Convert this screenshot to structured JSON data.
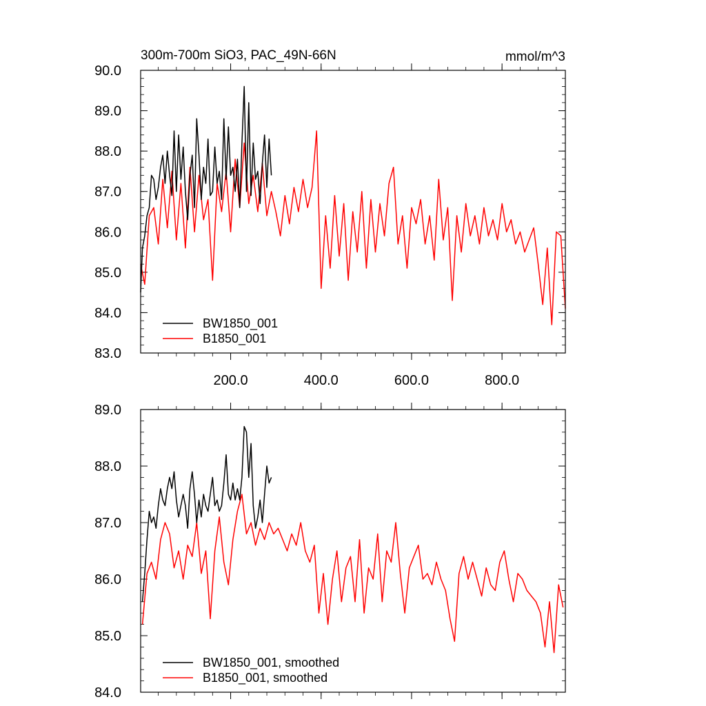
{
  "figure": {
    "title": "300m-700m SiO3, PAC_49N-66N",
    "units": "mmol/m^3"
  },
  "chart_data": [
    {
      "type": "line",
      "title": "300m-700m SiO3, PAC_49N-66N",
      "units_label": "mmol/m^3",
      "xlim": [
        1,
        940
      ],
      "ylim": [
        83.0,
        90.0
      ],
      "x_ticks": [
        200,
        400,
        600,
        800
      ],
      "x_tick_labels": [
        "200.0",
        "400.0",
        "600.0",
        "800.0"
      ],
      "y_ticks": [
        83,
        84,
        85,
        86,
        87,
        88,
        89,
        90
      ],
      "y_tick_labels": [
        "83.0",
        "84.0",
        "85.0",
        "86.0",
        "87.0",
        "88.0",
        "89.0",
        "90.0"
      ],
      "grid": false,
      "legend": "bottom-left",
      "series": [
        {
          "name": "BW1850_001",
          "color": "#000000",
          "x": [
            1,
            5,
            10,
            15,
            20,
            25,
            30,
            35,
            40,
            45,
            50,
            55,
            60,
            65,
            70,
            75,
            80,
            85,
            90,
            95,
            100,
            105,
            110,
            115,
            120,
            125,
            130,
            135,
            140,
            145,
            150,
            155,
            160,
            165,
            170,
            175,
            180,
            185,
            190,
            195,
            200,
            205,
            210,
            215,
            220,
            225,
            230,
            235,
            240,
            245,
            250,
            255,
            260,
            265,
            270,
            275,
            280,
            285,
            290
          ],
          "y": [
            84.5,
            85.6,
            85.9,
            86.4,
            86.6,
            87.4,
            87.3,
            86.8,
            87.1,
            87.6,
            87.9,
            87.2,
            88.0,
            87.4,
            86.9,
            88.5,
            87.0,
            88.4,
            87.3,
            88.1,
            87.0,
            86.3,
            87.4,
            87.9,
            86.6,
            88.8,
            87.9,
            86.8,
            87.6,
            87.2,
            88.3,
            86.9,
            87.0,
            88.1,
            87.2,
            87.5,
            86.8,
            88.8,
            87.3,
            88.6,
            87.4,
            87.6,
            87.0,
            87.8,
            86.6,
            88.2,
            89.6,
            87.0,
            89.2,
            86.9,
            88.2,
            87.3,
            87.5,
            86.7,
            87.7,
            88.4,
            87.1,
            88.3,
            87.4
          ]
        },
        {
          "name": "B1850_001",
          "color": "#ff0000",
          "x": [
            1,
            10,
            20,
            30,
            40,
            50,
            60,
            70,
            80,
            90,
            100,
            110,
            120,
            130,
            140,
            150,
            160,
            170,
            180,
            190,
            200,
            210,
            220,
            230,
            240,
            250,
            260,
            270,
            280,
            290,
            300,
            310,
            320,
            330,
            340,
            350,
            360,
            370,
            380,
            390,
            400,
            410,
            420,
            430,
            440,
            450,
            460,
            470,
            480,
            490,
            500,
            510,
            520,
            530,
            540,
            550,
            560,
            570,
            580,
            590,
            600,
            610,
            620,
            630,
            640,
            650,
            660,
            670,
            680,
            690,
            700,
            710,
            720,
            730,
            740,
            750,
            760,
            770,
            780,
            790,
            800,
            810,
            820,
            830,
            840,
            850,
            860,
            870,
            880,
            890,
            900,
            910,
            920,
            930,
            940
          ],
          "y": [
            85.2,
            84.7,
            86.4,
            86.6,
            85.7,
            87.3,
            86.1,
            87.5,
            85.8,
            87.2,
            85.6,
            87.6,
            86.0,
            87.4,
            86.3,
            86.8,
            84.8,
            87.2,
            86.5,
            87.5,
            86.0,
            87.8,
            86.6,
            88.2,
            86.7,
            87.4,
            86.5,
            87.7,
            86.4,
            87.0,
            86.5,
            85.9,
            86.9,
            86.2,
            87.1,
            86.5,
            87.3,
            86.6,
            87.1,
            88.5,
            84.6,
            86.4,
            85.1,
            86.9,
            85.4,
            86.7,
            84.8,
            86.5,
            85.5,
            87.0,
            85.1,
            86.8,
            85.5,
            86.7,
            85.9,
            87.2,
            87.6,
            85.7,
            86.4,
            85.1,
            86.6,
            86.2,
            86.8,
            85.7,
            86.4,
            85.3,
            87.3,
            85.8,
            86.6,
            84.3,
            86.4,
            85.5,
            86.7,
            85.9,
            86.4,
            85.7,
            86.6,
            85.9,
            86.3,
            85.8,
            86.7,
            86.0,
            86.3,
            85.7,
            86.0,
            85.5,
            85.8,
            86.1,
            85.2,
            84.2,
            85.6,
            83.7,
            86.0,
            85.9,
            84.1
          ]
        }
      ]
    },
    {
      "type": "line",
      "xlim": [
        1,
        940
      ],
      "ylim": [
        84.0,
        89.0
      ],
      "x_ticks": [
        200,
        400,
        600,
        800
      ],
      "x_tick_labels": [],
      "y_ticks": [
        84,
        85,
        86,
        87,
        88,
        89
      ],
      "y_tick_labels": [
        "84.0",
        "85.0",
        "86.0",
        "87.0",
        "88.0",
        "89.0"
      ],
      "grid": false,
      "legend": "bottom-left",
      "series": [
        {
          "name": "BW1850_001, smoothed",
          "color": "#000000",
          "x": [
            5,
            10,
            15,
            20,
            25,
            30,
            35,
            40,
            45,
            50,
            55,
            60,
            65,
            70,
            75,
            80,
            85,
            90,
            95,
            100,
            105,
            110,
            115,
            120,
            125,
            130,
            135,
            140,
            145,
            150,
            155,
            160,
            165,
            170,
            175,
            180,
            185,
            190,
            195,
            200,
            205,
            210,
            215,
            220,
            225,
            230,
            235,
            240,
            245,
            250,
            255,
            260,
            265,
            270,
            275,
            280,
            285,
            290
          ],
          "y": [
            85.6,
            86.1,
            86.7,
            87.2,
            87.0,
            87.1,
            86.9,
            87.3,
            87.6,
            87.4,
            87.3,
            87.6,
            87.8,
            87.6,
            87.9,
            87.4,
            87.1,
            87.3,
            87.5,
            87.3,
            86.9,
            87.6,
            87.9,
            87.5,
            87.0,
            87.4,
            87.1,
            87.5,
            87.3,
            87.2,
            87.5,
            87.8,
            87.3,
            87.4,
            87.2,
            87.3,
            87.7,
            88.2,
            87.5,
            87.4,
            87.7,
            87.4,
            87.6,
            87.4,
            87.8,
            88.7,
            88.6,
            87.8,
            88.4,
            87.3,
            86.9,
            87.1,
            87.4,
            87.0,
            87.5,
            88.0,
            87.7,
            87.8
          ]
        },
        {
          "name": "B1850_001, smoothed",
          "color": "#ff0000",
          "x": [
            5,
            15,
            25,
            35,
            45,
            55,
            65,
            75,
            85,
            95,
            105,
            115,
            125,
            135,
            145,
            155,
            165,
            175,
            185,
            195,
            205,
            215,
            225,
            235,
            245,
            255,
            265,
            275,
            285,
            295,
            305,
            315,
            325,
            335,
            345,
            355,
            365,
            375,
            385,
            395,
            405,
            415,
            425,
            435,
            445,
            455,
            465,
            475,
            485,
            495,
            505,
            515,
            525,
            535,
            545,
            555,
            565,
            575,
            585,
            595,
            605,
            615,
            625,
            635,
            645,
            655,
            665,
            675,
            685,
            695,
            705,
            715,
            725,
            735,
            745,
            755,
            765,
            775,
            785,
            795,
            805,
            815,
            825,
            835,
            845,
            855,
            865,
            875,
            885,
            895,
            905,
            915,
            925,
            935
          ],
          "y": [
            85.2,
            86.1,
            86.3,
            86.0,
            86.7,
            87.0,
            86.8,
            86.2,
            86.5,
            86.0,
            86.6,
            86.4,
            87.0,
            86.1,
            86.5,
            85.3,
            86.5,
            87.1,
            86.3,
            85.9,
            86.7,
            87.2,
            87.5,
            86.8,
            87.0,
            86.6,
            86.9,
            86.7,
            87.0,
            86.8,
            86.9,
            86.7,
            86.5,
            86.8,
            86.6,
            87.0,
            86.5,
            86.3,
            86.6,
            85.4,
            86.1,
            85.2,
            86.0,
            86.5,
            85.6,
            86.2,
            86.4,
            85.6,
            86.7,
            85.4,
            86.2,
            86.0,
            86.8,
            85.6,
            86.5,
            86.3,
            87.0,
            86.1,
            85.4,
            86.2,
            86.4,
            86.6,
            86.0,
            86.1,
            85.9,
            86.3,
            86.0,
            85.8,
            85.3,
            84.9,
            86.1,
            86.4,
            86.0,
            86.3,
            86.0,
            85.7,
            86.2,
            85.9,
            85.8,
            86.3,
            86.5,
            86.0,
            85.6,
            86.1,
            86.0,
            85.8,
            85.7,
            85.6,
            85.4,
            84.8,
            85.6,
            84.7,
            85.9,
            85.5
          ]
        }
      ]
    }
  ]
}
